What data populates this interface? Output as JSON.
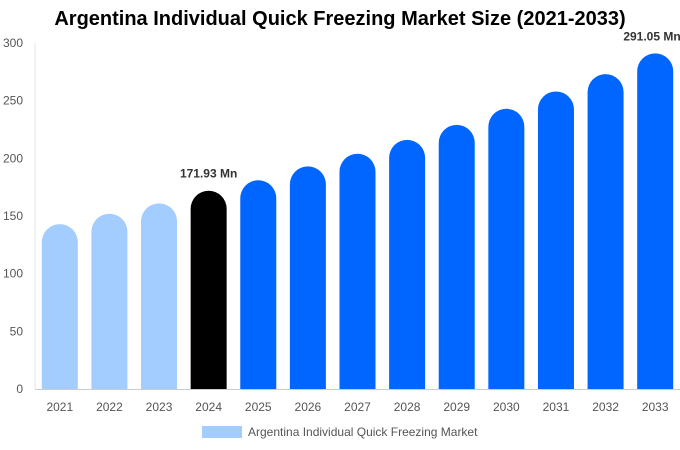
{
  "chart_data": {
    "type": "bar",
    "title": "Argentina Individual Quick Freezing Market Size (2021-2033)",
    "categories": [
      "2021",
      "2022",
      "2023",
      "2024",
      "2025",
      "2026",
      "2027",
      "2028",
      "2029",
      "2030",
      "2031",
      "2032",
      "2033"
    ],
    "series": [
      {
        "name": "Argentina Individual Quick Freezing Market",
        "values": [
          143,
          152,
          161,
          171.93,
          181,
          193,
          204,
          216,
          229,
          243,
          258,
          273,
          291.05
        ]
      }
    ],
    "data_labels": [
      {
        "category": "2024",
        "text": "171.93 Mn"
      },
      {
        "category": "2033",
        "text": "291.05 Mn"
      }
    ],
    "ylim": [
      0,
      300
    ],
    "yticks": [
      0,
      50,
      100,
      150,
      200,
      250,
      300
    ],
    "xlabel": "",
    "ylabel": "",
    "grid": false,
    "legend_position": "bottom",
    "colors": {
      "historic": "#a3cdff",
      "base_year": "#000000",
      "forecast": "#0066ff"
    }
  }
}
